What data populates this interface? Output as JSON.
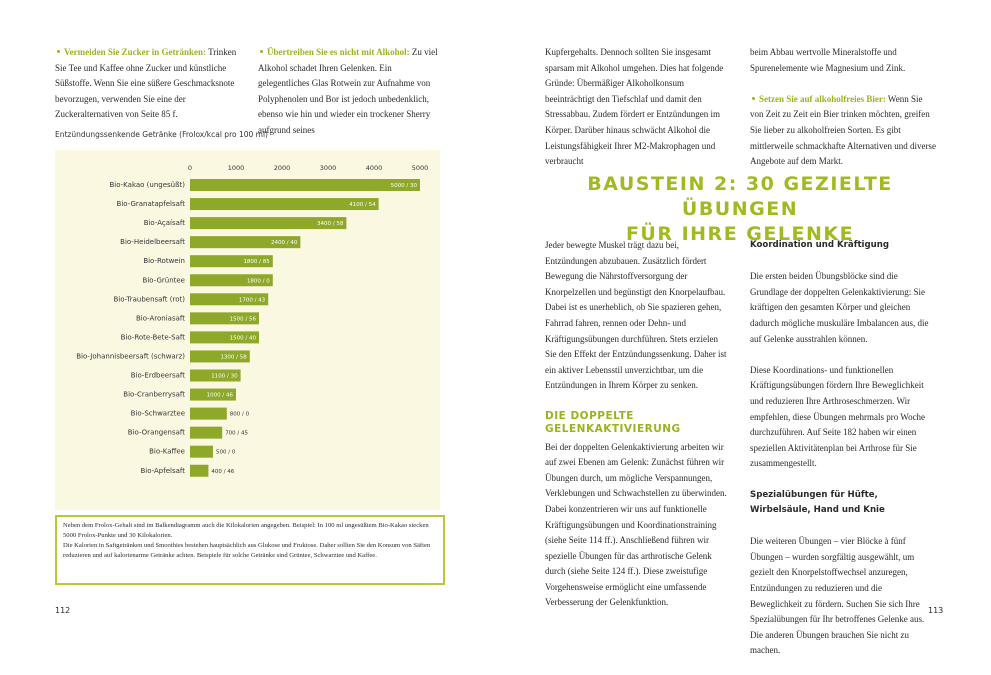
{
  "left_page": {
    "columns": [
      [
        {
          "lead": "Vermeiden Sie Zucker in Getränken:",
          "text": "Trinken Sie Tee und Kaffee ohne Zucker und künstliche Süßstoffe. Wenn Sie eine süßere Geschmacksnote bevorzugen, verwenden Sie eine der Zuckeralternativen von Seite 85 f."
        }
      ],
      [
        {
          "lead": "Übertreiben Sie es nicht mit Alkohol:",
          "text": "Zu viel Alkohol schadet Ihren Gelenken. Ein gelegentliches Glas Rotwein zur Aufnahme von Polyphenolen und Bor ist jedoch unbedenklich, ebenso wie hin und wieder ein trockener Sherry aufgrund seines"
        }
      ]
    ],
    "note": [
      "Neben dem Frolox-Gehalt sind im Balkendiagramm auch die Kilokalorien angegeben. Beispiel: In 100 ml ungesüßtem Bio-Kakao stecken 5000 Frolox-Punkte und 30 Kilokalorien.",
      "Die Kalorien in Saftgetränken und Smoothies bestehen hauptsächlich aus Glukose und Fruktose. Daher sollten Sie den Konsum von Säften reduzieren und auf kalorienarme Getränke achten. Beispiele für solche Getränke sind Grüntee, Schwarztee und Kaffee."
    ],
    "page_number": "112"
  },
  "chart_data": {
    "type": "hbar",
    "title": "Entzündungssenkende Getränke (Frolox/kcal pro 100 ml)",
    "categories": [
      "Bio-Kakao (ungesüßt)",
      "Bio-Granatapfelsaft",
      "Bio-Açaísaft",
      "Bio-Heidelbeersaft",
      "Bio-Rotwein",
      "Bio-Grüntee",
      "Bio-Traubensaft (rot)",
      "Bio-Aroniasaft",
      "Bio-Rote-Bete-Saft",
      "Bio-Johannisbeersaft (schwarz)",
      "Bio-Erdbeersaft",
      "Bio-Cranberrysaft",
      "Bio-Schwarztee",
      "Bio-Orangensaft",
      "Bio-Kaffee",
      "Bio-Apfelsaft"
    ],
    "values": [
      5000,
      4100,
      3400,
      2400,
      1800,
      1800,
      1700,
      1500,
      1500,
      1300,
      1100,
      1000,
      800,
      700,
      500,
      400
    ],
    "value_labels": [
      "5000 / 30",
      "4100 / 54",
      "3400 / 58",
      "2400 / 40",
      "1800 / 85",
      "1800 / 0",
      "1700 / 43",
      "1500 / 56",
      "1500 / 40",
      "1300 / 58",
      "1100 / 30",
      "1000 / 46",
      "800 / 0",
      "700 / 45",
      "500 / 0",
      "400 / 46"
    ],
    "color": "#8ea82a",
    "xlim": [
      0,
      5000
    ],
    "xticks": [
      0,
      1000,
      2000,
      3000,
      4000,
      5000
    ]
  },
  "right_page": {
    "columns": [
      [
        {
          "text": "Kupfergehalts. Dennoch sollten Sie insgesamt sparsam mit Alkohol umgehen. Dies hat folgende Gründe: Übermäßiger Alkoholkonsum beeinträchtigt den Tiefschlaf und damit den Stressabbau. Zudem fördert er Entzündungen im Körper. Darüber hinaus schwächt Alkohol die Leistungsfähigkeit Ihrer M2-Makrophagen und verbraucht"
        }
      ],
      [
        {
          "text": "beim Abbau wertvolle Mineralstoffe und Spurenelemente wie Magnesium und Zink."
        },
        {
          "lead": "Setzen Sie auf alkoholfreies Bier:",
          "text": "Wenn Sie von Zeit zu Zeit ein Bier trinken möchten, greifen Sie lieber zu alkoholfreien Sorten. Es gibt mittlerweile schmackhafte Alternativen und diverse Angebote auf dem Markt."
        }
      ]
    ],
    "heading": [
      "BAUSTEIN 2: 30 GEZIELTE ÜBUNGEN",
      "FÜR IHRE GELENKE"
    ],
    "body_columns": [
      [
        {
          "text": "Jeder bewegte Muskel trägt dazu bei, Entzündungen abzubauen. Zusätzlich fördert Bewegung die Nährstoffversorgung der Knorpelzellen und begünstigt den Knorpelaufbau. Dabei ist es unerheblich, ob Sie spazieren gehen, Fahrrad fahren, rennen oder Dehn- und Kräftigungsübungen durchführen. Stets erzielen Sie den Effekt der Entzündungssenkung. Daher ist ein aktiver Lebensstil unverzichtbar, um die Entzündungen in Ihrem Körper zu senken."
        },
        {
          "heading": "DIE DOPPELTE GELENKAKTIVIERUNG"
        },
        {
          "text": "Bei der doppelten Gelenkaktivierung arbeiten wir auf zwei Ebenen am Gelenk: Zunächst führen wir Übungen durch, um mögliche Verspannungen, Verklebungen und Schwachstellen zu überwinden. Dabei konzentrieren wir uns auf funktionelle Kräftigungsübungen und Koordinationstraining (siehe Seite 114 ff.). Anschließend führen wir spezielle Übungen für das arthrotische Gelenk durch (siehe Seite 124 ff.). Diese zweistufige Vorgehensweise ermöglicht eine umfassende Verbesserung der Gelenkfunktion."
        }
      ],
      [
        {
          "subheading": "Koordination und Kräftigung"
        },
        {
          "text": "Die ersten beiden Übungsblöcke sind die Grundlage der doppelten Gelenkaktivierung: Sie kräftigen den gesamten Körper und gleichen dadurch mögliche muskuläre Imbalancen aus, die auf Gelenke ausstrahlen können."
        },
        {
          "text": "Diese Koordinations- und funktionellen Kräftigungsübungen fördern Ihre Beweglichkeit und reduzieren Ihre Arthroseschmerzen. Wir empfehlen, diese Übungen mehrmals pro Woche durchzuführen. Auf Seite 182 haben wir einen speziellen Aktivitätenplan bei Arthrose für Sie zusammengestellt."
        },
        {
          "subheading": "Spezialübungen für Hüfte, Wirbelsäule, Hand und Knie"
        },
        {
          "text": "Die weiteren Übungen – vier Blöcke à fünf Übungen – wurden sorgfältig ausgewählt, um gezielt den Knorpelstoffwechsel anzuregen, Entzündungen zu reduzieren und die Beweglichkeit zu fördern. Suchen Sie sich Ihre Spezialübungen für Ihr betroffenes Gelenke aus. Die anderen Übungen brauchen Sie nicht zu machen."
        }
      ]
    ],
    "page_number": "113"
  }
}
